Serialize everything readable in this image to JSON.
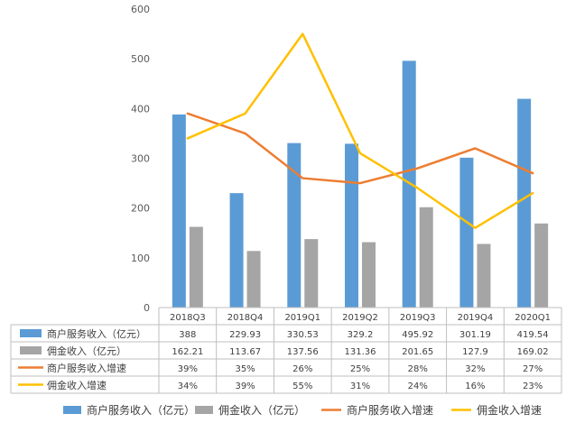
{
  "chart_data": {
    "type": "bar",
    "categories": [
      "2018Q3",
      "2018Q4",
      "2019Q1",
      "2019Q2",
      "2019Q3",
      "2019Q4",
      "2020Q1"
    ],
    "ylim": [
      0,
      600
    ],
    "yticks": [
      0,
      100,
      200,
      300,
      400,
      500,
      600
    ],
    "grid": false,
    "legend_position": "bottom",
    "series": [
      {
        "name": "商户服务收入（亿元）",
        "kind": "bar",
        "color": "#5B9BD5",
        "values": [
          388,
          229.93,
          330.53,
          329.2,
          495.92,
          301.19,
          419.54
        ],
        "labels": [
          "388",
          "229.93",
          "330.53",
          "329.2",
          "495.92",
          "301.19",
          "419.54"
        ]
      },
      {
        "name": "佣金收入（亿元）",
        "kind": "bar",
        "color": "#A5A5A5",
        "values": [
          162.21,
          113.67,
          137.56,
          131.36,
          201.65,
          127.9,
          169.02
        ],
        "labels": [
          "162.21",
          "113.67",
          "137.56",
          "131.36",
          "201.65",
          "127.9",
          "169.02"
        ]
      },
      {
        "name": "商户服务收入增速",
        "kind": "line",
        "color": "#ED7D31",
        "plot_values": [
          390,
          350,
          260,
          250,
          280,
          320,
          270
        ],
        "labels": [
          "39%",
          "35%",
          "26%",
          "25%",
          "28%",
          "32%",
          "27%"
        ]
      },
      {
        "name": "佣金收入增速",
        "kind": "line",
        "color": "#FFC000",
        "plot_values": [
          340,
          390,
          550,
          310,
          240,
          160,
          230
        ],
        "labels": [
          "34%",
          "39%",
          "55%",
          "31%",
          "24%",
          "16%",
          "23%"
        ]
      }
    ]
  }
}
